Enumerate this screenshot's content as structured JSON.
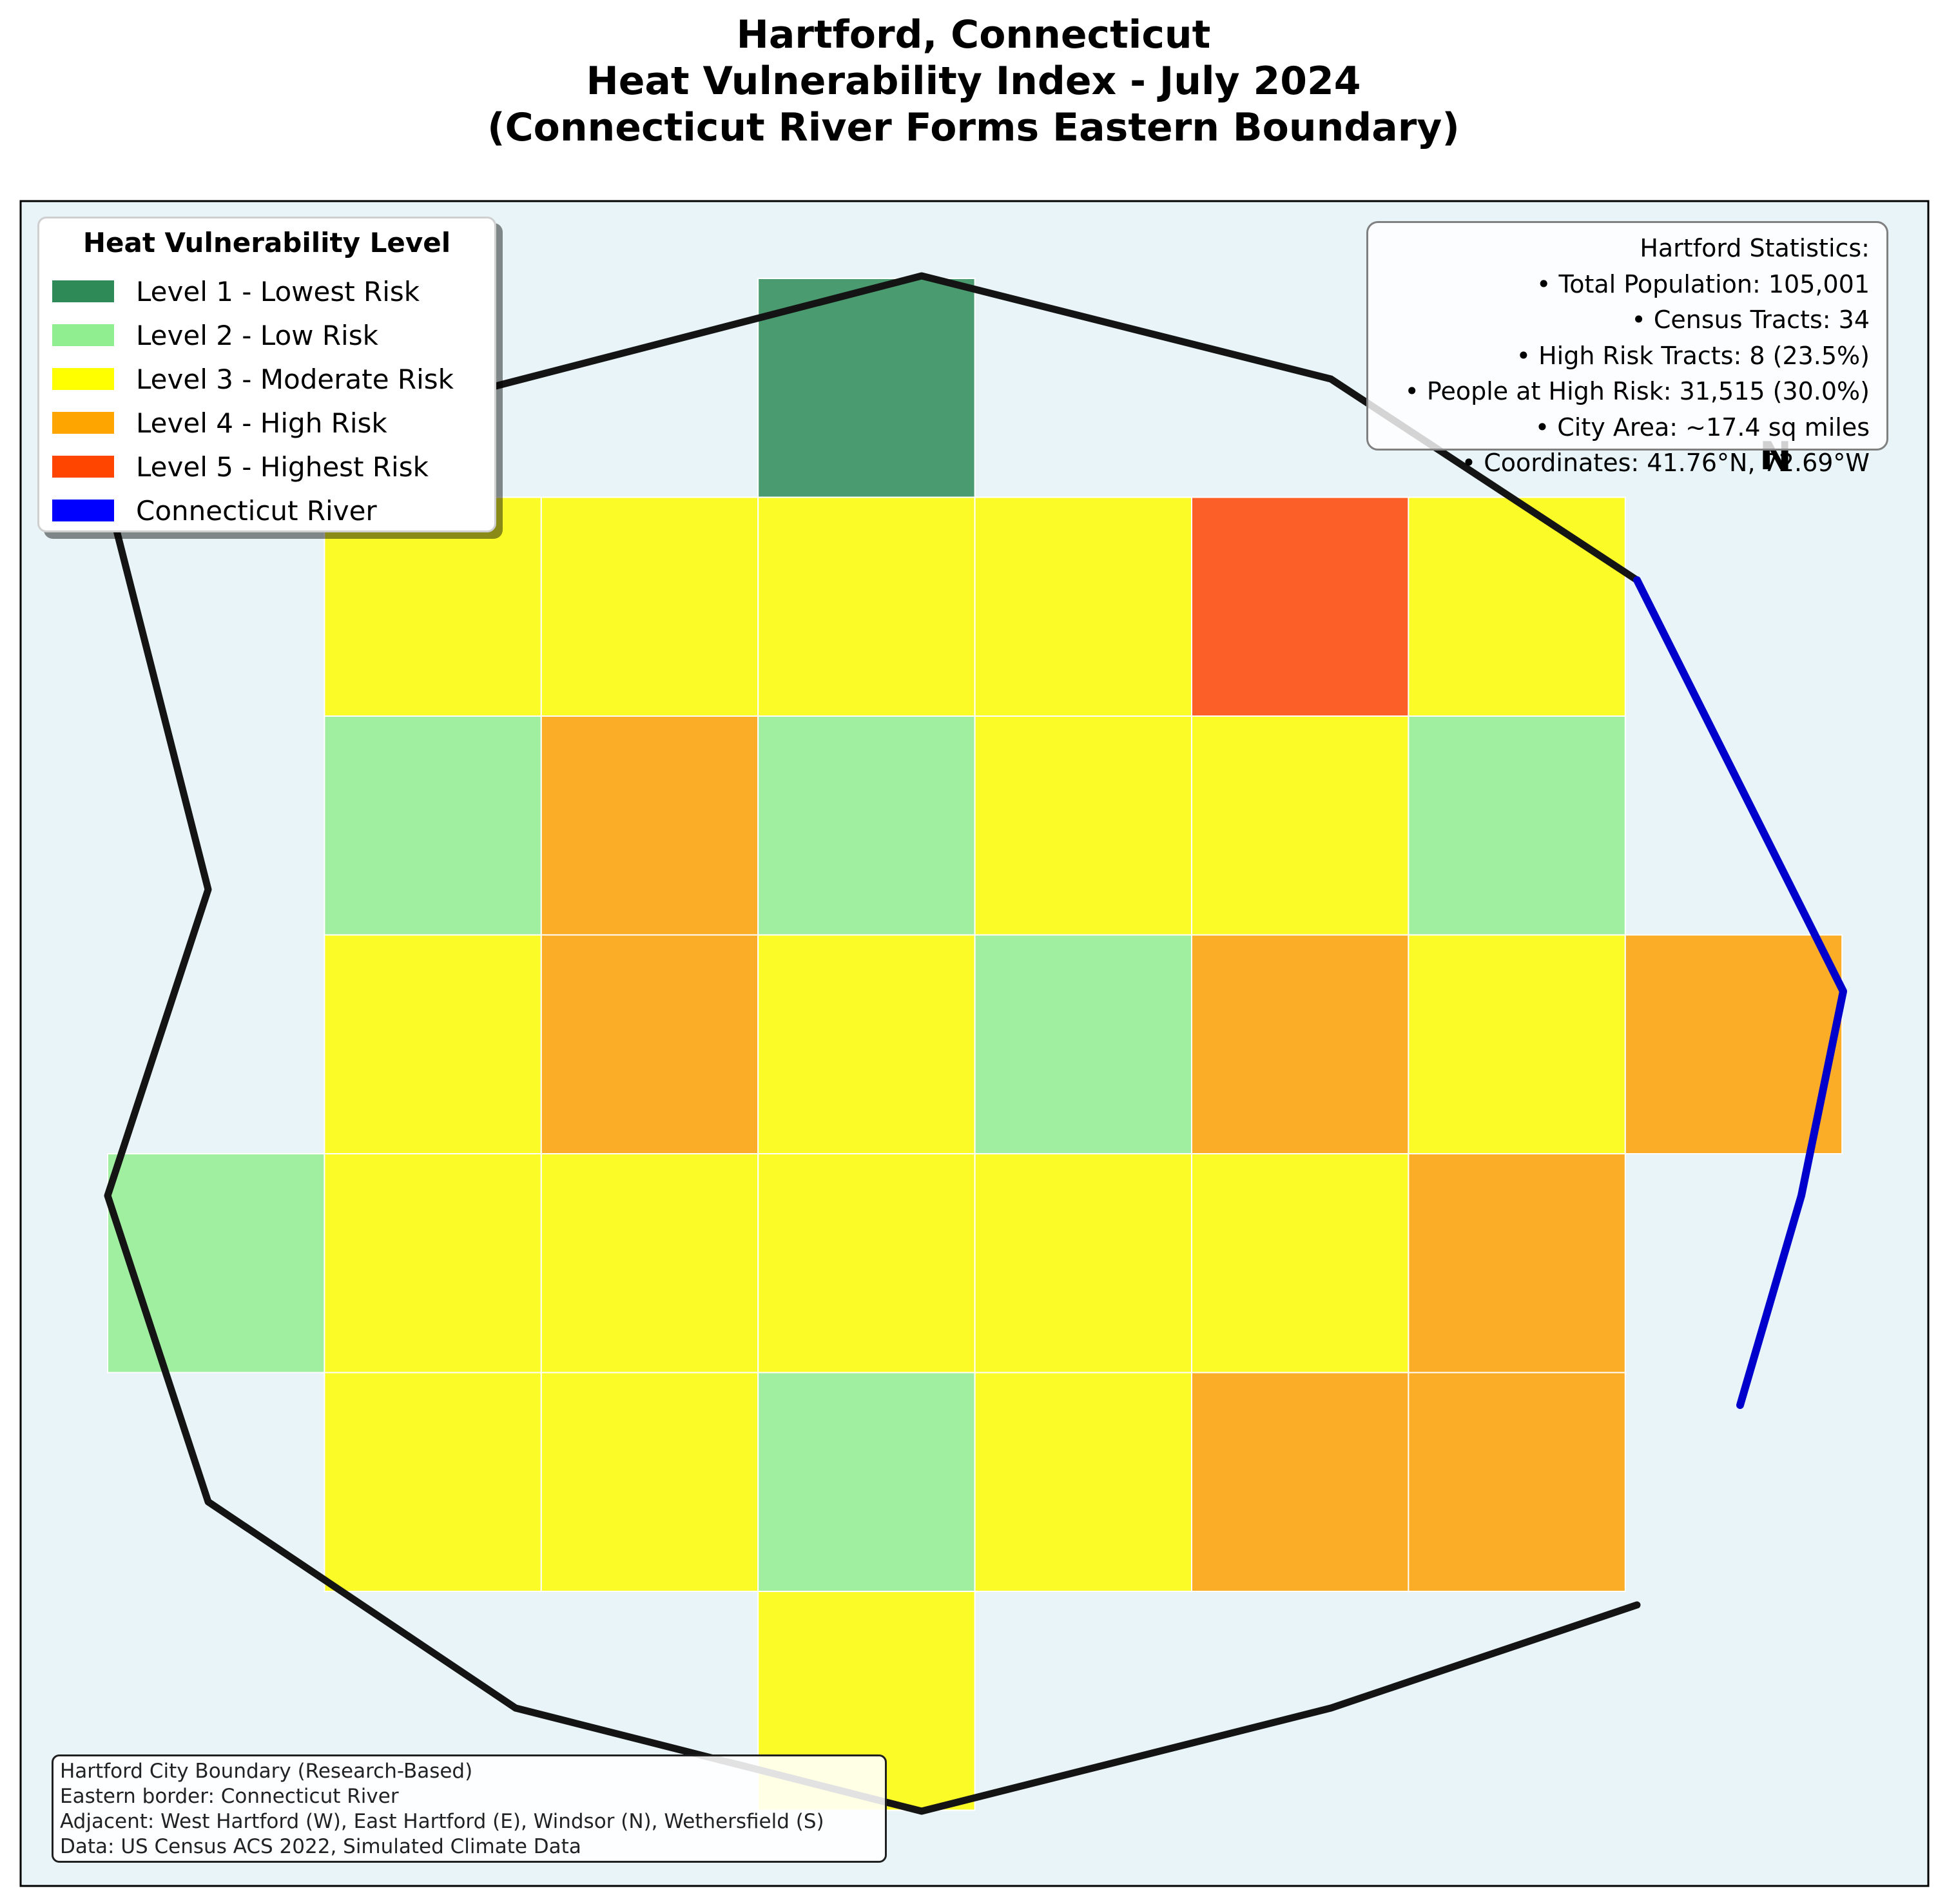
{
  "title": {
    "line1": "Hartford, Connecticut",
    "line2": "Heat Vulnerability Index - July 2024",
    "line3": "(Connecticut River Forms Eastern Boundary)"
  },
  "legend": {
    "title": "Heat Vulnerability Level",
    "items": [
      {
        "label": "Level 1 - Lowest Risk",
        "color": "#2e8b57"
      },
      {
        "label": "Level 2 - Low Risk",
        "color": "#90ee90"
      },
      {
        "label": "Level 3 - Moderate Risk",
        "color": "#ffff00"
      },
      {
        "label": "Level 4 - High Risk",
        "color": "#ffa500"
      },
      {
        "label": "Level 5 - Highest Risk",
        "color": "#ff4500"
      },
      {
        "label": "Connecticut River",
        "color": "#0000ff"
      }
    ]
  },
  "stats": {
    "heading": "Hartford Statistics:",
    "lines": [
      "• Total Population: 105,001",
      "• Census Tracts: 34",
      "• High Risk Tracts: 8 (23.5%)",
      "• People at High Risk: 31,515 (30.0%)",
      "• City Area: ~17.4 sq miles",
      "• Coordinates: 41.76°N, 72.69°W"
    ]
  },
  "north_label": "N",
  "source": {
    "lines": [
      "Hartford City Boundary (Research-Based)",
      "Eastern border: Connecticut River",
      "Adjacent: West Hartford (W), East Hartford (E), Windsor (N), Wethersfield (S)",
      "Data: US Census ACS 2022, Simulated Climate Data"
    ]
  },
  "colors": {
    "background": "#e8f4f8",
    "boundary": "#141414",
    "river": "#0000cc",
    "level1": "#4a9b6f",
    "level2": "#a0ee9f",
    "level3": "#fbfb28",
    "level4": "#fbad28",
    "level5": "#fc5f28"
  },
  "tracts": [
    {
      "row": 0,
      "col": 3,
      "level": 1
    },
    {
      "row": 1,
      "col": 1,
      "level": 3
    },
    {
      "row": 1,
      "col": 2,
      "level": 3
    },
    {
      "row": 1,
      "col": 3,
      "level": 3
    },
    {
      "row": 1,
      "col": 4,
      "level": 3
    },
    {
      "row": 1,
      "col": 5,
      "level": 5
    },
    {
      "row": 1,
      "col": 6,
      "level": 3
    },
    {
      "row": 2,
      "col": 1,
      "level": 2
    },
    {
      "row": 2,
      "col": 2,
      "level": 4
    },
    {
      "row": 2,
      "col": 3,
      "level": 2
    },
    {
      "row": 2,
      "col": 4,
      "level": 3
    },
    {
      "row": 2,
      "col": 5,
      "level": 3
    },
    {
      "row": 2,
      "col": 6,
      "level": 2
    },
    {
      "row": 3,
      "col": 1,
      "level": 3
    },
    {
      "row": 3,
      "col": 2,
      "level": 4
    },
    {
      "row": 3,
      "col": 3,
      "level": 3
    },
    {
      "row": 3,
      "col": 4,
      "level": 2
    },
    {
      "row": 3,
      "col": 5,
      "level": 4
    },
    {
      "row": 3,
      "col": 6,
      "level": 3
    },
    {
      "row": 3,
      "col": 7,
      "level": 4
    },
    {
      "row": 4,
      "col": 0,
      "level": 2
    },
    {
      "row": 4,
      "col": 1,
      "level": 3
    },
    {
      "row": 4,
      "col": 2,
      "level": 3
    },
    {
      "row": 4,
      "col": 3,
      "level": 3
    },
    {
      "row": 4,
      "col": 4,
      "level": 3
    },
    {
      "row": 4,
      "col": 5,
      "level": 3
    },
    {
      "row": 4,
      "col": 6,
      "level": 4
    },
    {
      "row": 5,
      "col": 1,
      "level": 3
    },
    {
      "row": 5,
      "col": 2,
      "level": 3
    },
    {
      "row": 5,
      "col": 3,
      "level": 2
    },
    {
      "row": 5,
      "col": 4,
      "level": 3
    },
    {
      "row": 5,
      "col": 5,
      "level": 4
    },
    {
      "row": 5,
      "col": 6,
      "level": 4
    },
    {
      "row": 6,
      "col": 3,
      "level": 3
    }
  ]
}
